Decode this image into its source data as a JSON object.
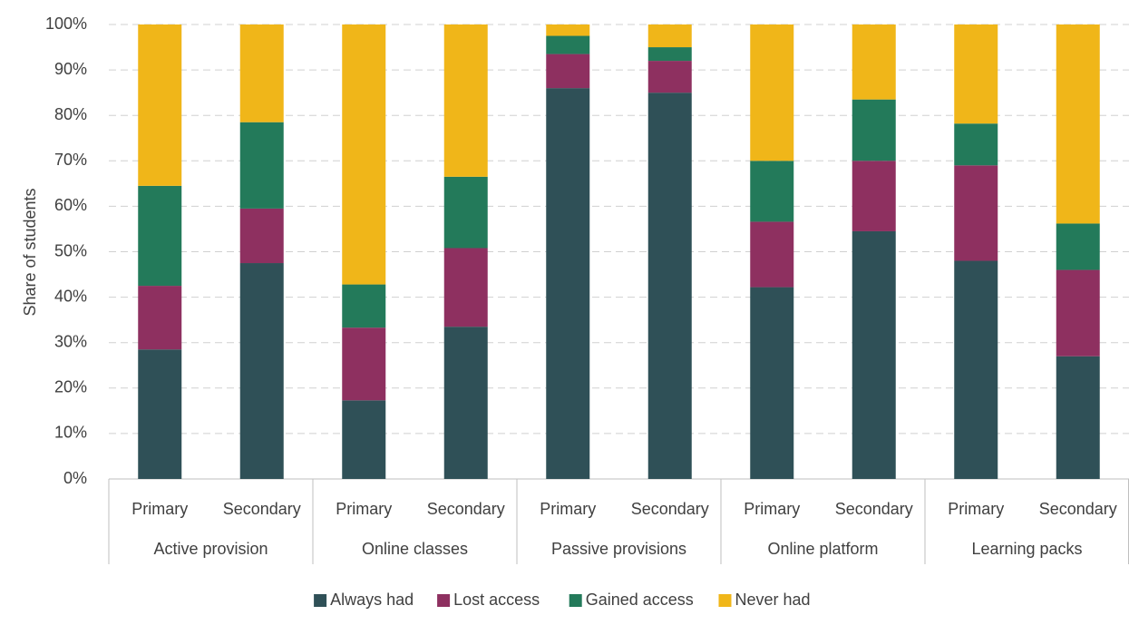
{
  "chart_data": {
    "type": "stacked-bar",
    "y_label": "Share of students",
    "groups": [
      {
        "name": "Active provision",
        "categories": [
          "Primary",
          "Secondary"
        ]
      },
      {
        "name": "Online classes",
        "categories": [
          "Primary",
          "Secondary"
        ]
      },
      {
        "name": "Passive provisions",
        "categories": [
          "Primary",
          "Secondary"
        ]
      },
      {
        "name": "Online platform",
        "categories": [
          "Primary",
          "Secondary"
        ]
      },
      {
        "name": "Learning packs",
        "categories": [
          "Primary",
          "Secondary"
        ]
      }
    ],
    "series": [
      {
        "name": "Always had",
        "color": "#2f5057",
        "values": [
          28.5,
          47.5,
          17.3,
          33.5,
          86,
          85,
          42.2,
          54.5,
          48,
          27
        ]
      },
      {
        "name": "Lost access",
        "color": "#8e3060",
        "values": [
          14,
          12,
          16,
          17.3,
          7.5,
          7,
          14.4,
          15.5,
          21,
          19
        ]
      },
      {
        "name": "Gained access",
        "color": "#237a5a",
        "values": [
          22,
          19,
          9.5,
          15.7,
          4,
          3,
          13.4,
          13.5,
          9.2,
          10.2
        ]
      },
      {
        "name": "Never had",
        "color": "#f0b619",
        "values": [
          35.5,
          21.5,
          57.2,
          33.5,
          2.5,
          5,
          30,
          16.5,
          21.8,
          43.8
        ]
      }
    ],
    "ylim": [
      0,
      100
    ],
    "yticks": [
      {
        "value": 0,
        "label": "0%"
      },
      {
        "value": 10,
        "label": "10%"
      },
      {
        "value": 20,
        "label": "20%"
      },
      {
        "value": 30,
        "label": "30%"
      },
      {
        "value": 40,
        "label": "40%"
      },
      {
        "value": 50,
        "label": "50%"
      },
      {
        "value": 60,
        "label": "60%"
      },
      {
        "value": 70,
        "label": "70%"
      },
      {
        "value": 80,
        "label": "80%"
      },
      {
        "value": 90,
        "label": "90%"
      },
      {
        "value": 100,
        "label": "100%"
      }
    ],
    "grid": true,
    "legend": "bottom"
  }
}
